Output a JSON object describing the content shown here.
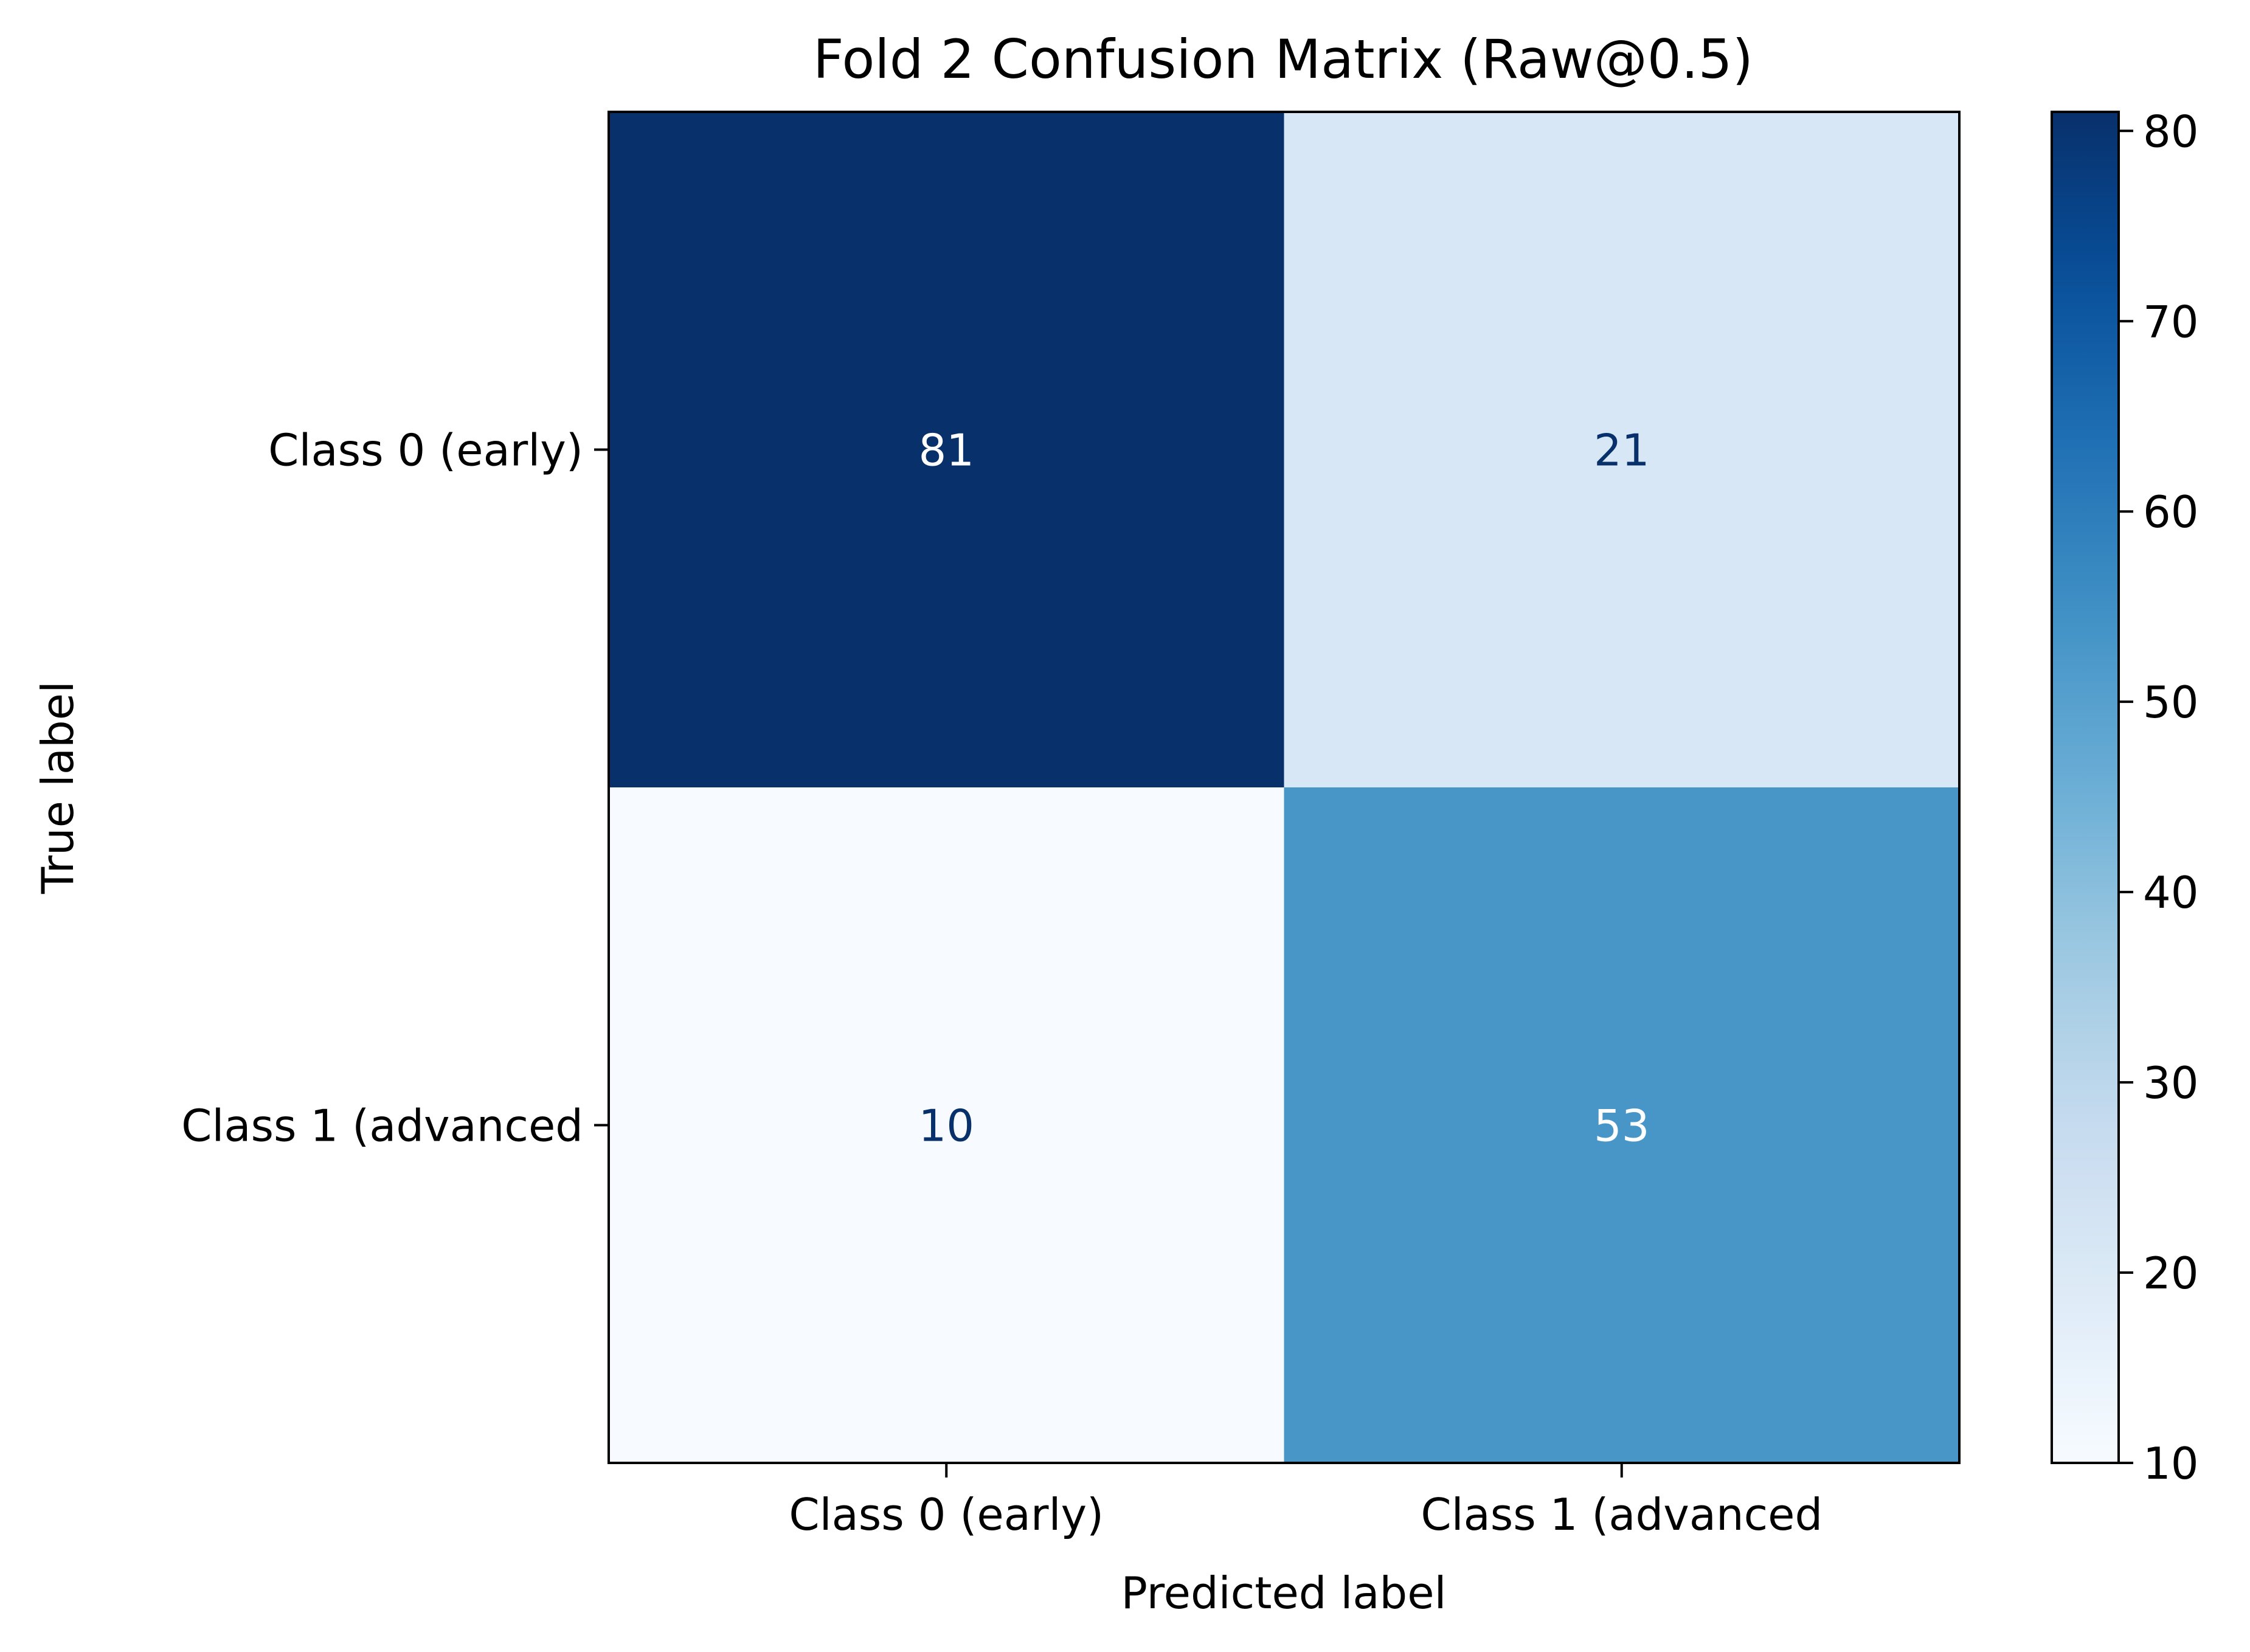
{
  "chart_data": {
    "type": "heatmap",
    "title": "Fold 2 Confusion Matrix (Raw@0.5)",
    "xlabel": "Predicted label",
    "ylabel": "True label",
    "x_categories": [
      "Class 0 (early)",
      "Class 1 (advanced"
    ],
    "y_categories": [
      "Class 0 (early)",
      "Class 1 (advanced"
    ],
    "values": [
      [
        81,
        21
      ],
      [
        10,
        53
      ]
    ],
    "colormap": "Blues",
    "colorbar": {
      "min": 10,
      "max": 81,
      "ticks": [
        10,
        20,
        30,
        40,
        50,
        60,
        70,
        80
      ]
    },
    "grid": false
  }
}
